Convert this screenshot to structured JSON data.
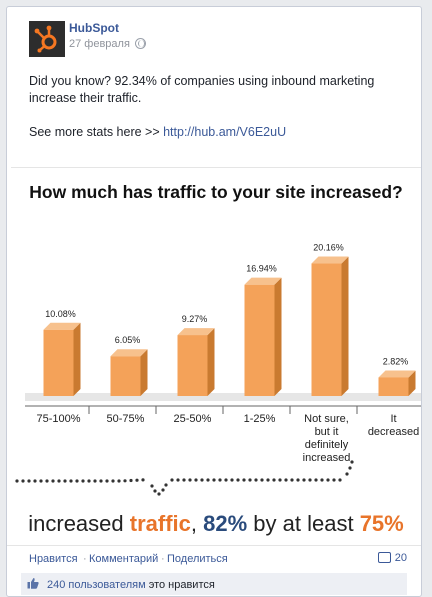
{
  "post": {
    "author": "HubSpot",
    "date": "27 февраля",
    "line1": "Did you know? 92.34% of companies using inbound marketing increase their traffic.",
    "more_prefix": "See more stats here >> ",
    "link": "http://hub.am/V6E2uU"
  },
  "chart_data": {
    "type": "bar",
    "title": "How much has traffic to your site increased?",
    "categories": [
      "75-100%",
      "50-75%",
      "25-50%",
      "1-25%",
      "Not sure, but it definitely increased",
      "It decreased"
    ],
    "category_lines": [
      [
        "75-100%"
      ],
      [
        "50-75%"
      ],
      [
        "25-50%"
      ],
      [
        "1-25%"
      ],
      [
        "Not sure,",
        "but it",
        "definitely",
        "increased"
      ],
      [
        "It",
        "decreased"
      ]
    ],
    "values": [
      10.08,
      6.05,
      9.27,
      16.94,
      20.16,
      2.82
    ],
    "value_labels": [
      "10.08%",
      "6.05%",
      "9.27%",
      "16.94%",
      "20.16%",
      "2.82%"
    ],
    "bar_color": "#f4a259",
    "ylim": [
      0,
      21
    ]
  },
  "summary": {
    "part1": "increased ",
    "part2": "traffic",
    "part3": ", ",
    "part4": "82%",
    "part5": " by at least ",
    "part6": "75%",
    "orange": "#e8742a",
    "blue": "#2a4b7c"
  },
  "actions": {
    "like": "Нравится",
    "dot": "·",
    "comment": "Комментарий",
    "share": "Поделиться",
    "comments_count": "20"
  },
  "likes": {
    "count_text": "240 пользователям",
    "suffix": " это нравится"
  }
}
